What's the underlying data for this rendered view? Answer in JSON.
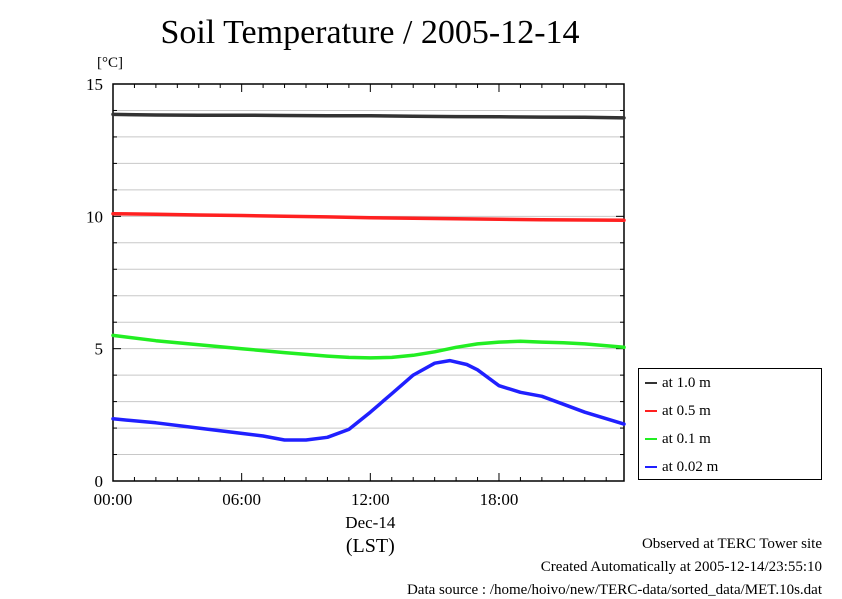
{
  "title": "Soil Temperature / 2005-12-14",
  "chart_data": {
    "type": "line",
    "title": "Soil Temperature / 2005-12-14",
    "ylabel": "[°C]",
    "xlabel": "(LST)",
    "x_date_label": "Dec-14",
    "x_unit": "hours",
    "xlim": [
      0,
      23.83
    ],
    "ylim": [
      0,
      15
    ],
    "y_ticks": [
      "0",
      "5",
      "10",
      "15"
    ],
    "x_ticks": [
      {
        "x": 0,
        "label": "00:00"
      },
      {
        "x": 6,
        "label": "06:00"
      },
      {
        "x": 12,
        "label": "12:00"
      },
      {
        "x": 18,
        "label": "18:00"
      }
    ],
    "grid": true,
    "legend_position": "lower-right outside",
    "series": [
      {
        "name": "at 1.0 m",
        "color": "#333333",
        "x": [
          0,
          2,
          4,
          6,
          8,
          10,
          12,
          14,
          16,
          18,
          20,
          22,
          23.83
        ],
        "y": [
          13.85,
          13.83,
          13.82,
          13.82,
          13.81,
          13.8,
          13.8,
          13.78,
          13.77,
          13.76,
          13.75,
          13.74,
          13.72
        ]
      },
      {
        "name": "at 0.5 m",
        "color": "#ff2020",
        "x": [
          0,
          2,
          4,
          6,
          8,
          10,
          12,
          14,
          16,
          18,
          20,
          22,
          23.83
        ],
        "y": [
          10.1,
          10.08,
          10.05,
          10.03,
          10.0,
          9.98,
          9.95,
          9.93,
          9.91,
          9.89,
          9.87,
          9.86,
          9.85
        ]
      },
      {
        "name": "at 0.1 m",
        "color": "#22ee22",
        "x": [
          0,
          2,
          4,
          6,
          8,
          10,
          11,
          12,
          13,
          14,
          15,
          16,
          17,
          18,
          19,
          20,
          21,
          22,
          23.83
        ],
        "y": [
          5.5,
          5.3,
          5.15,
          5.0,
          4.85,
          4.72,
          4.67,
          4.65,
          4.67,
          4.75,
          4.88,
          5.05,
          5.18,
          5.25,
          5.28,
          5.25,
          5.22,
          5.18,
          5.05
        ]
      },
      {
        "name": "at 0.02 m",
        "color": "#2020ff",
        "x": [
          0,
          2,
          4,
          6,
          7,
          8,
          9,
          10,
          11,
          12,
          13,
          14,
          15,
          15.7,
          16.5,
          17,
          18,
          19,
          20,
          21,
          22,
          23.83
        ],
        "y": [
          2.35,
          2.2,
          2.0,
          1.8,
          1.7,
          1.55,
          1.55,
          1.65,
          1.95,
          2.6,
          3.3,
          4.0,
          4.45,
          4.55,
          4.4,
          4.2,
          3.6,
          3.35,
          3.2,
          2.9,
          2.6,
          2.15
        ]
      }
    ]
  },
  "footer": {
    "site": "Observed at TERC Tower site",
    "created": "Created Automatically at 2005-12-14/23:55:10",
    "source": "Data source : /home/hoivo/new/TERC-data/sorted_data/MET.10s.dat"
  }
}
